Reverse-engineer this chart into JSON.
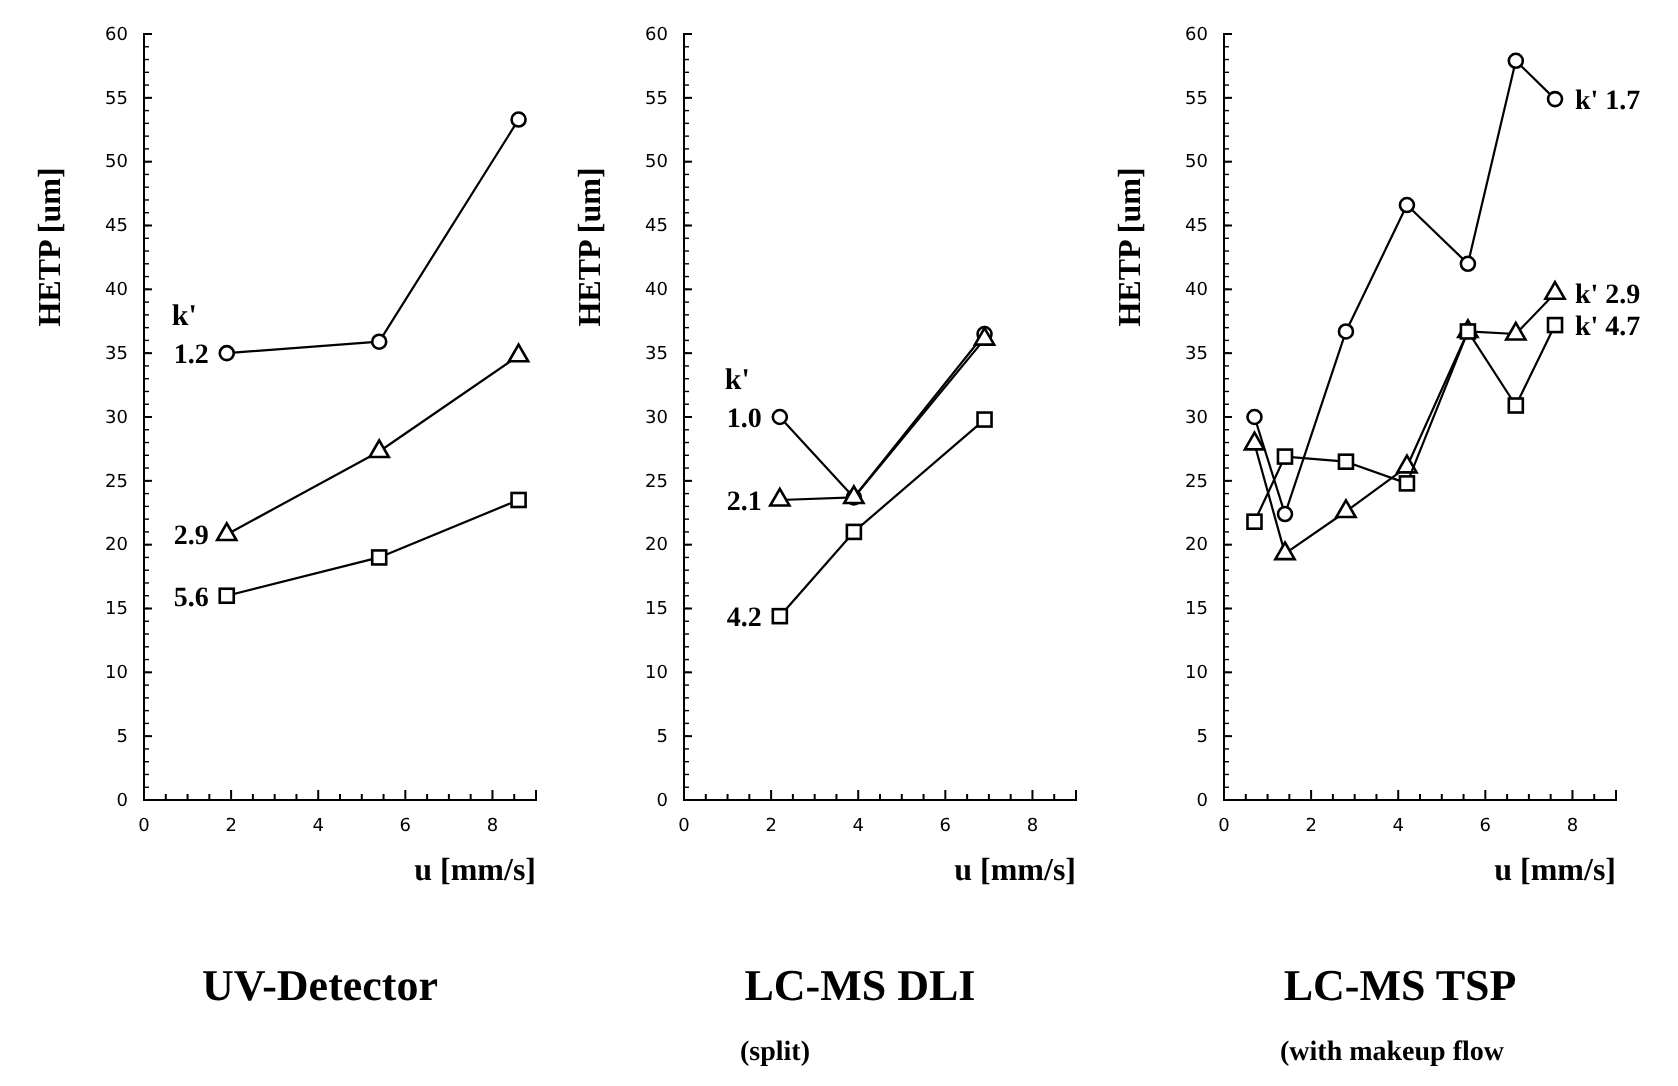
{
  "chart_data": [
    {
      "type": "line",
      "title": "UV-Detector",
      "xlabel": "u [mm/s]",
      "ylabel": "HETP [um]",
      "legend_title": "k'",
      "xlim": [
        0,
        9
      ],
      "ylim": [
        0,
        60
      ],
      "xticks": [
        0,
        {
          "value": 0.5,
          "label": null
        },
        {
          "value": 1,
          "label": null
        },
        {
          "value": 1.5,
          "label": null
        },
        2,
        {
          "value": 2.5,
          "label": null
        },
        {
          "value": 3,
          "label": null
        },
        {
          "value": 3.5,
          "label": null
        },
        4,
        {
          "value": 4.5,
          "label": null
        },
        {
          "value": 5,
          "label": null
        },
        {
          "value": 5.5,
          "label": null
        },
        6,
        {
          "value": 6.5,
          "label": null
        },
        {
          "value": 7,
          "label": null
        },
        {
          "value": 7.5,
          "label": null
        },
        8,
        {
          "value": 8.5,
          "label": null
        },
        {
          "value": 9,
          "label": null
        }
      ],
      "yticks": [
        0,
        5,
        10,
        15,
        20,
        25,
        30,
        35,
        40,
        45,
        50,
        55,
        60
      ],
      "series": [
        {
          "name": "1.2",
          "color": "#000000",
          "marker": "circle",
          "x": [
            1.9,
            5.4,
            8.6
          ],
          "values": [
            35,
            35.9,
            53.3
          ]
        },
        {
          "name": "2.9",
          "color": "#000000",
          "marker": "triangle",
          "x": [
            1.9,
            5.4,
            8.6
          ],
          "values": [
            20.8,
            27.3,
            34.8
          ]
        },
        {
          "name": "5.6",
          "color": "#000000",
          "marker": "square",
          "x": [
            1.9,
            5.4,
            8.6
          ],
          "values": [
            16,
            19,
            23.5
          ]
        }
      ]
    },
    {
      "type": "line",
      "title": "LC-MS  DLI",
      "subtitle": "(split)",
      "xlabel": "u [mm/s]",
      "ylabel": "HETP [um]",
      "legend_title": "k'",
      "xlim": [
        0,
        9
      ],
      "ylim": [
        0,
        60
      ],
      "xticks": [
        0,
        {
          "value": 0.5,
          "label": null
        },
        {
          "value": 1,
          "label": null
        },
        {
          "value": 1.5,
          "label": null
        },
        2,
        {
          "value": 2.5,
          "label": null
        },
        {
          "value": 3,
          "label": null
        },
        {
          "value": 3.5,
          "label": null
        },
        4,
        {
          "value": 4.5,
          "label": null
        },
        {
          "value": 5,
          "label": null
        },
        {
          "value": 5.5,
          "label": null
        },
        6,
        {
          "value": 6.5,
          "label": null
        },
        {
          "value": 7,
          "label": null
        },
        {
          "value": 7.5,
          "label": null
        },
        8,
        {
          "value": 8.5,
          "label": null
        },
        {
          "value": 9,
          "label": null
        }
      ],
      "yticks": [
        0,
        5,
        10,
        15,
        20,
        25,
        30,
        35,
        40,
        45,
        50,
        55,
        60
      ],
      "series": [
        {
          "name": "1.0",
          "color": "#000000",
          "marker": "circle",
          "x": [
            2.2,
            3.9,
            6.9
          ],
          "values": [
            30,
            23.7,
            36.5
          ]
        },
        {
          "name": "2.1",
          "color": "#000000",
          "marker": "triangle",
          "x": [
            2.2,
            3.9,
            6.9
          ],
          "values": [
            23.5,
            23.7,
            36.1
          ]
        },
        {
          "name": "4.2",
          "color": "#000000",
          "marker": "square",
          "x": [
            2.2,
            3.9,
            6.9
          ],
          "values": [
            14.4,
            21,
            29.8
          ]
        }
      ]
    },
    {
      "type": "line",
      "title": "LC-MS  TSP",
      "subtitle": "(with makeup flow",
      "xlabel": "u [mm/s]",
      "ylabel": "HETP [um]",
      "xlim": [
        0,
        9
      ],
      "ylim": [
        0,
        60
      ],
      "xticks": [
        0,
        {
          "value": 0.5,
          "label": null
        },
        {
          "value": 1,
          "label": null
        },
        {
          "value": 1.5,
          "label": null
        },
        2,
        {
          "value": 2.5,
          "label": null
        },
        {
          "value": 3,
          "label": null
        },
        {
          "value": 3.5,
          "label": null
        },
        4,
        {
          "value": 4.5,
          "label": null
        },
        {
          "value": 5,
          "label": null
        },
        {
          "value": 5.5,
          "label": null
        },
        6,
        {
          "value": 6.5,
          "label": null
        },
        {
          "value": 7,
          "label": null
        },
        {
          "value": 7.5,
          "label": null
        },
        8,
        {
          "value": 8.5,
          "label": null
        },
        {
          "value": 9,
          "label": null
        }
      ],
      "yticks": [
        0,
        5,
        10,
        15,
        20,
        25,
        30,
        35,
        40,
        45,
        50,
        55,
        60
      ],
      "series": [
        {
          "name": "k' 1.7",
          "color": "#000000",
          "marker": "circle",
          "x": [
            0.7,
            1.4,
            2.8,
            4.2,
            5.6,
            6.7,
            7.6
          ],
          "values": [
            30,
            22.4,
            36.7,
            46.6,
            42,
            57.9,
            54.9
          ]
        },
        {
          "name": "k' 2.9",
          "color": "#000000",
          "marker": "triangle",
          "x": [
            0.7,
            1.4,
            2.8,
            4.2,
            5.6,
            6.7,
            7.6
          ],
          "values": [
            27.9,
            19.3,
            22.6,
            26.1,
            36.7,
            36.5,
            39.7
          ]
        },
        {
          "name": "k' 4.7",
          "color": "#000000",
          "marker": "square",
          "x": [
            0.7,
            1.4,
            2.8,
            4.2,
            5.6,
            6.7,
            7.6
          ],
          "values": [
            21.8,
            26.9,
            26.5,
            24.8,
            36.7,
            30.9,
            37.2
          ]
        }
      ]
    }
  ]
}
